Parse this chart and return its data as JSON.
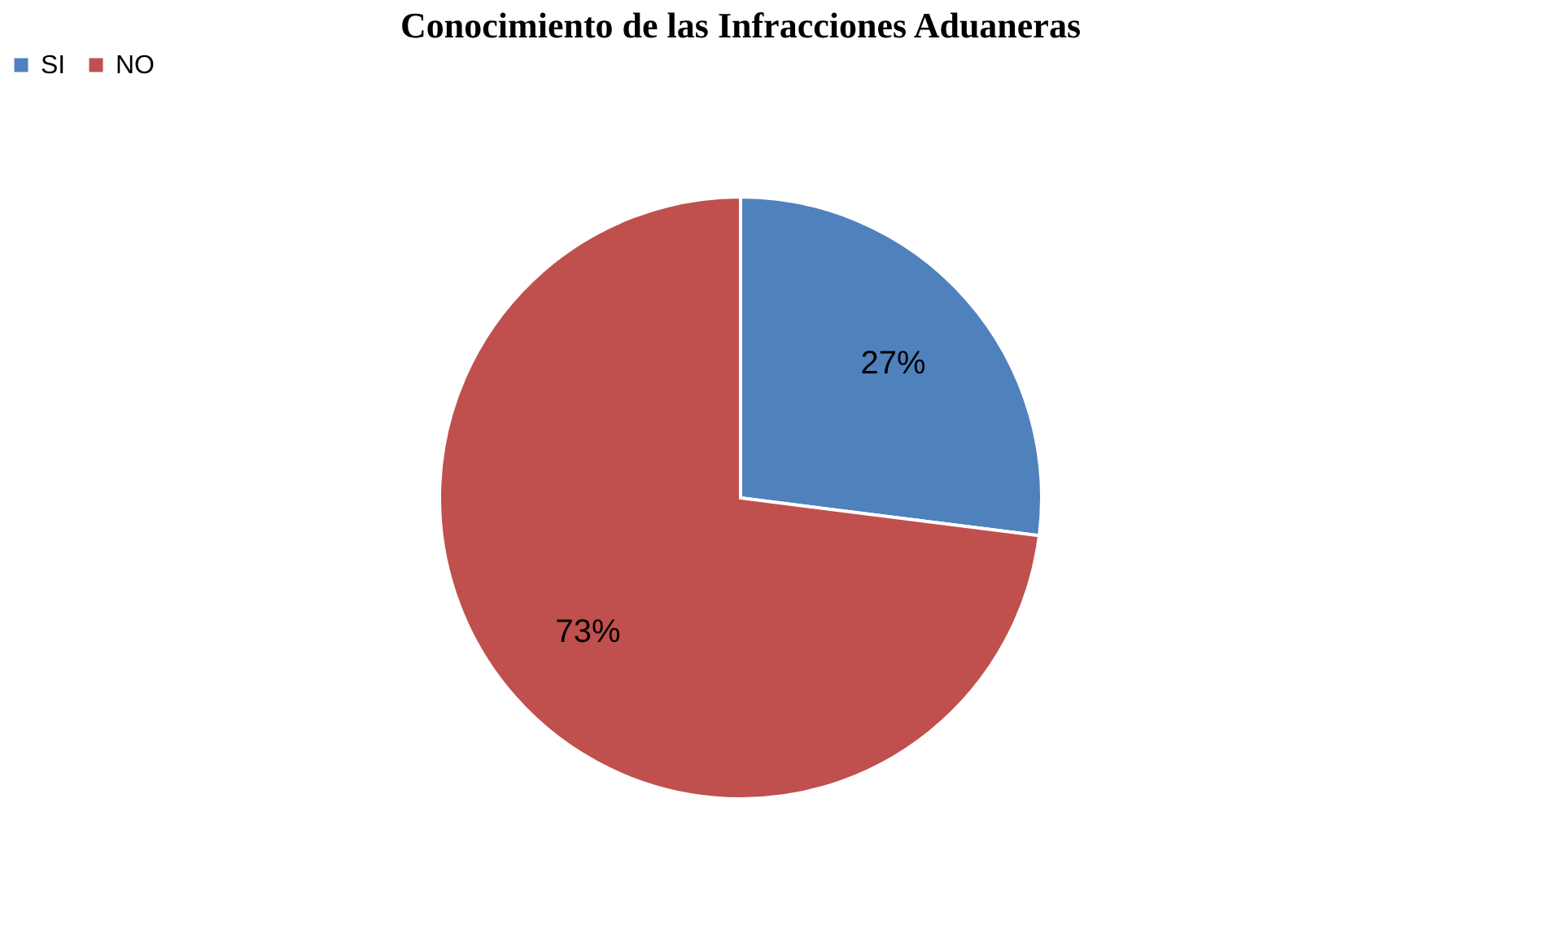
{
  "chart_data": {
    "type": "pie",
    "title": "Conocimiento de las Infracciones Aduaneras",
    "categories": [
      "SI",
      "NO"
    ],
    "values": [
      27,
      73
    ],
    "value_labels": [
      "27%",
      "73%"
    ],
    "colors": [
      "#4f81bd",
      "#c0504d"
    ],
    "legend": "top"
  }
}
